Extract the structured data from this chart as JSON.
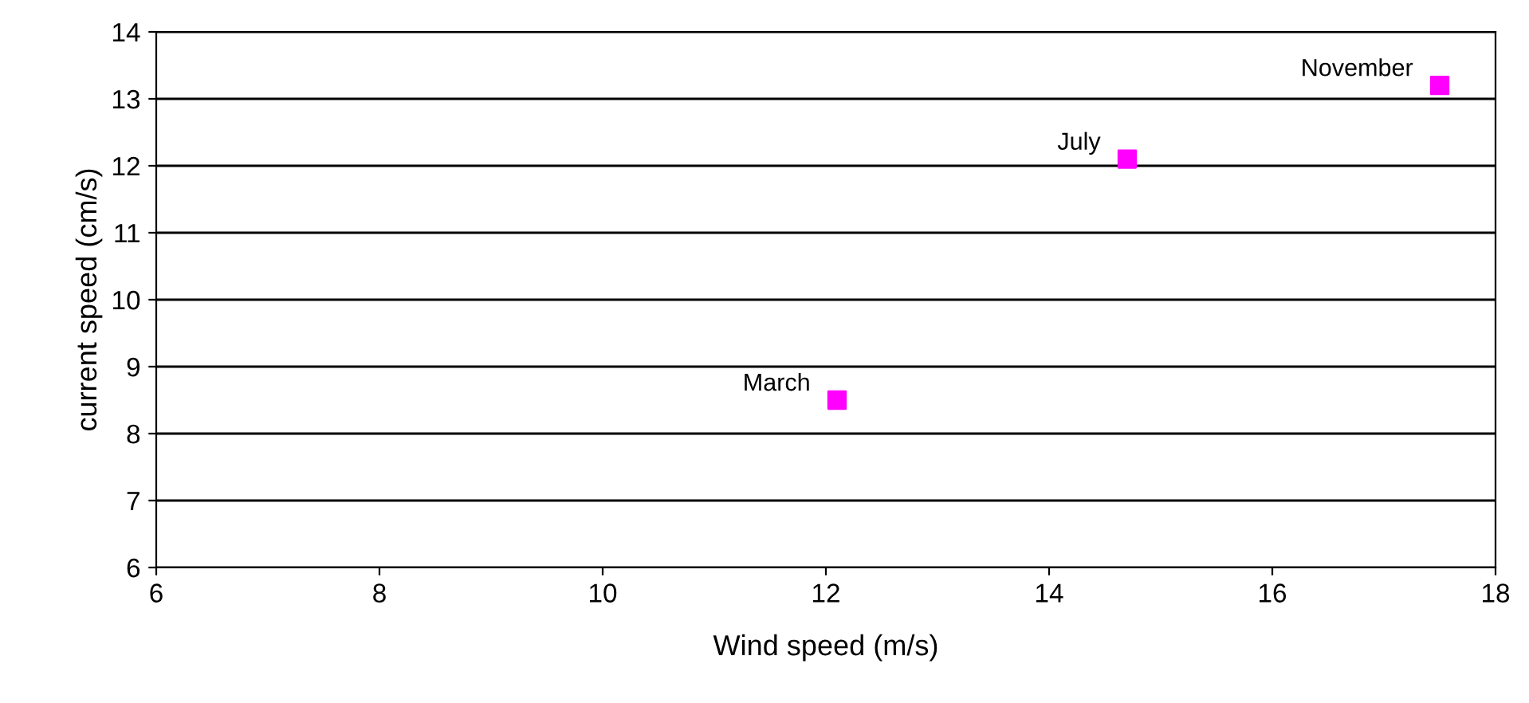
{
  "chart_data": {
    "type": "scatter",
    "xlabel": "Wind speed (m/s)",
    "ylabel": "current speed (cm/s)",
    "x": [
      12.1,
      14.7,
      17.5
    ],
    "series": [
      {
        "color": "#ff00ff",
        "values": [
          8.5,
          12.1,
          13.2
        ]
      }
    ],
    "marker": "square",
    "xlim": [
      6,
      18
    ],
    "xticks": [
      6,
      8,
      10,
      12,
      14,
      16,
      18
    ],
    "ylim": [
      6,
      14
    ],
    "yticks": [
      6,
      7,
      8,
      9,
      10,
      11,
      12,
      13,
      14
    ],
    "grid": "y",
    "annotations": [
      {
        "text": "March",
        "x": 12.1,
        "y": 8.5
      },
      {
        "text": "July",
        "x": 14.7,
        "y": 12.1
      },
      {
        "text": "November",
        "x": 17.5,
        "y": 13.2
      }
    ]
  }
}
